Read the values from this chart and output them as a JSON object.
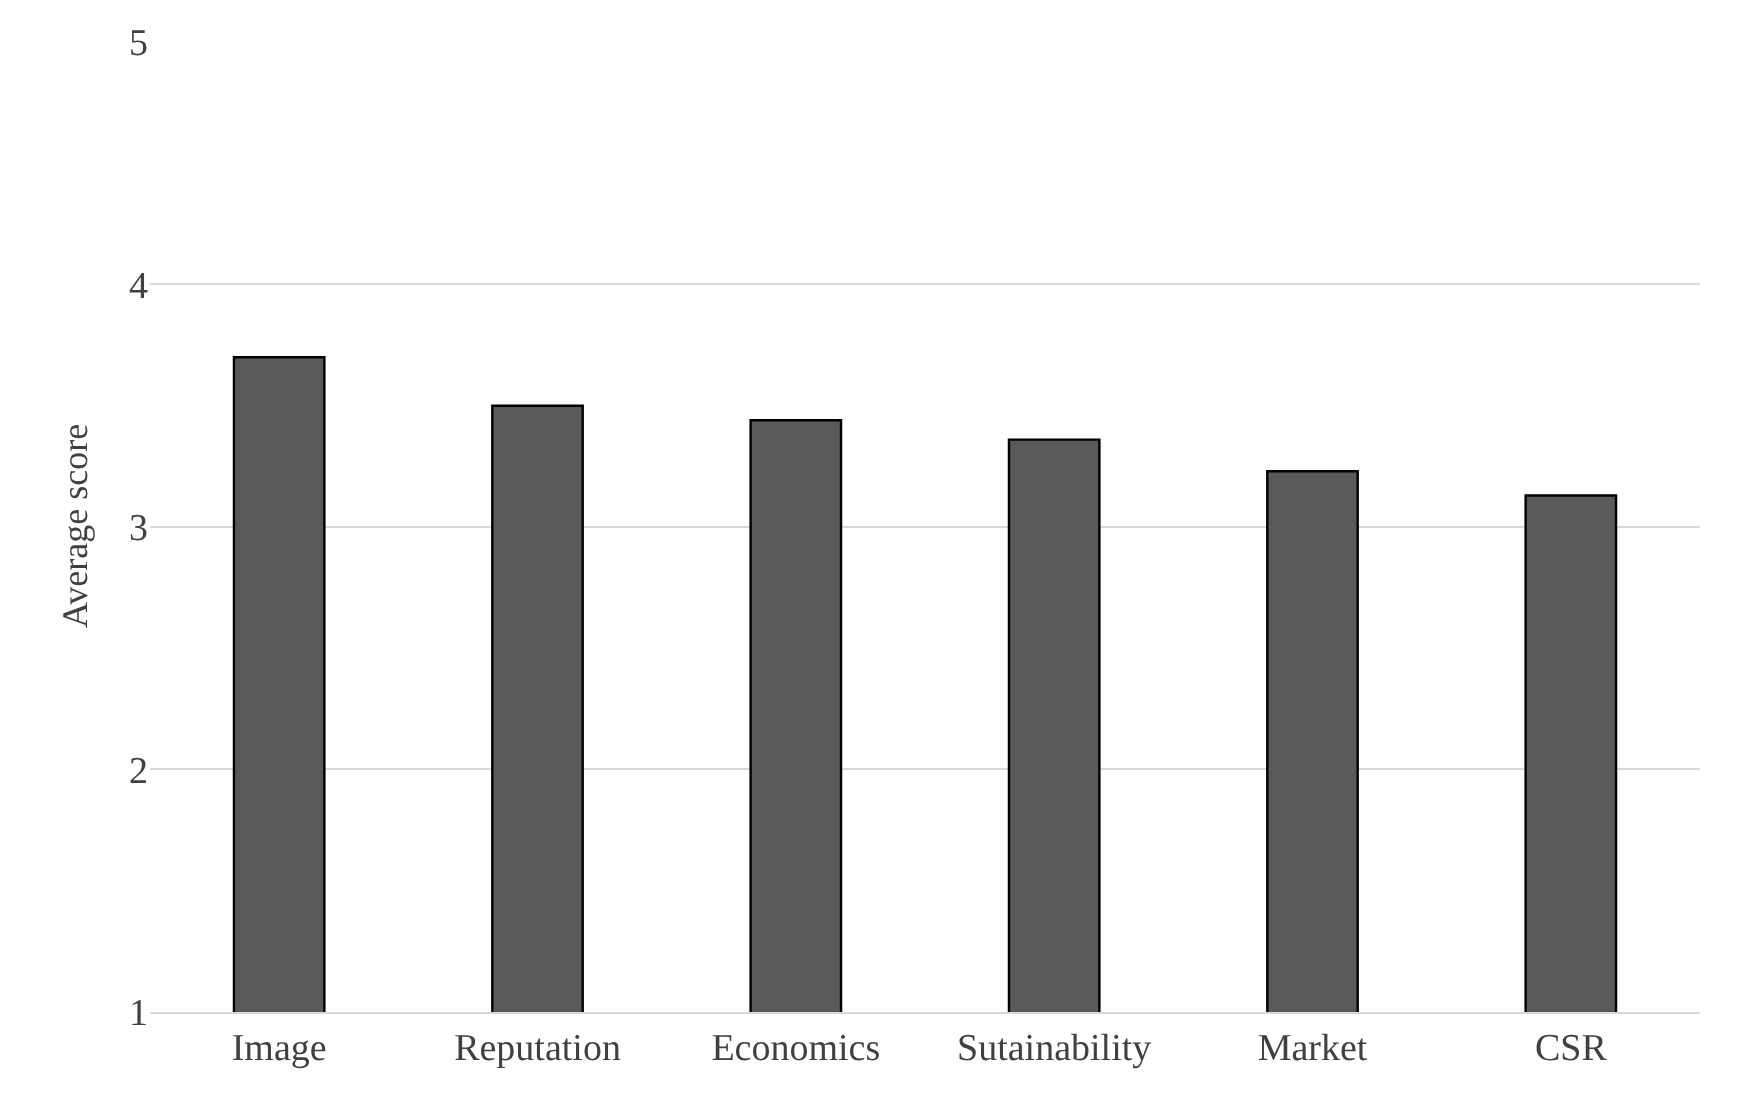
{
  "chart_data": {
    "type": "bar",
    "ylabel": "Average score",
    "categories": [
      "Image",
      "Reputation",
      "Economics",
      "Sutainability",
      "Market",
      "CSR"
    ],
    "values": [
      3.7,
      3.5,
      3.44,
      3.36,
      3.23,
      3.13
    ],
    "color": "#595959",
    "ylim": [
      1,
      5
    ],
    "yticks": [
      1,
      2,
      3,
      4,
      5
    ],
    "grid": "y"
  }
}
